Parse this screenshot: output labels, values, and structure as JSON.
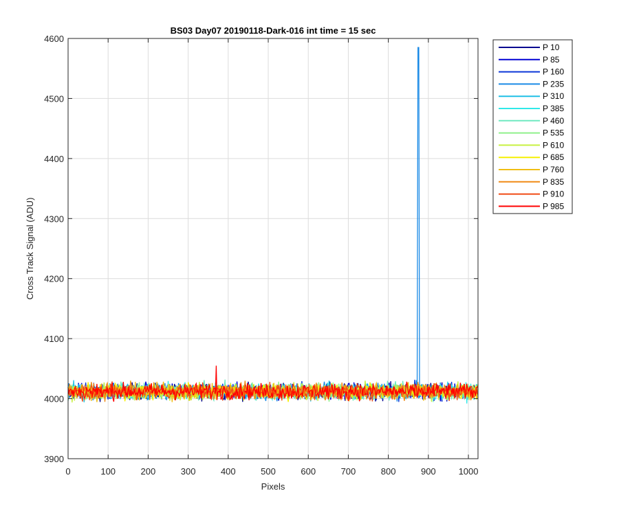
{
  "chart_data": {
    "type": "line",
    "title": "BS03 Day07 20190118-Dark-016 int time = 15 sec",
    "xlabel": "Pixels",
    "ylabel": "Cross Track Signal (ADU)",
    "xlim": [
      0,
      1024
    ],
    "ylim": [
      3900,
      4600
    ],
    "xticks": [
      0,
      100,
      200,
      300,
      400,
      500,
      600,
      700,
      800,
      900,
      1000
    ],
    "yticks": [
      3900,
      4000,
      4100,
      4200,
      4300,
      4400,
      4500,
      4600
    ],
    "grid": true,
    "legend_position": "outside-top-right",
    "noise_baseline": 4012,
    "noise_amplitude": 12,
    "series": [
      {
        "name": "P 10",
        "color": "#00008f"
      },
      {
        "name": "P 85",
        "color": "#0000d4"
      },
      {
        "name": "P 160",
        "color": "#0a36d8"
      },
      {
        "name": "P 235",
        "color": "#1a8ae6",
        "spike": {
          "x": 875,
          "y": 4585
        }
      },
      {
        "name": "P 310",
        "color": "#1fbfe6"
      },
      {
        "name": "P 385",
        "color": "#2fe8e8"
      },
      {
        "name": "P 460",
        "color": "#6fe8c0"
      },
      {
        "name": "P 535",
        "color": "#8ff08a"
      },
      {
        "name": "P 610",
        "color": "#c8f040"
      },
      {
        "name": "P 685",
        "color": "#f5f000"
      },
      {
        "name": "P 760",
        "color": "#f0be14"
      },
      {
        "name": "P 835",
        "color": "#f08a14"
      },
      {
        "name": "P 910",
        "color": "#f04a14"
      },
      {
        "name": "P 985",
        "color": "#ff0000",
        "spike": {
          "x": 370,
          "y": 4055
        }
      }
    ]
  }
}
